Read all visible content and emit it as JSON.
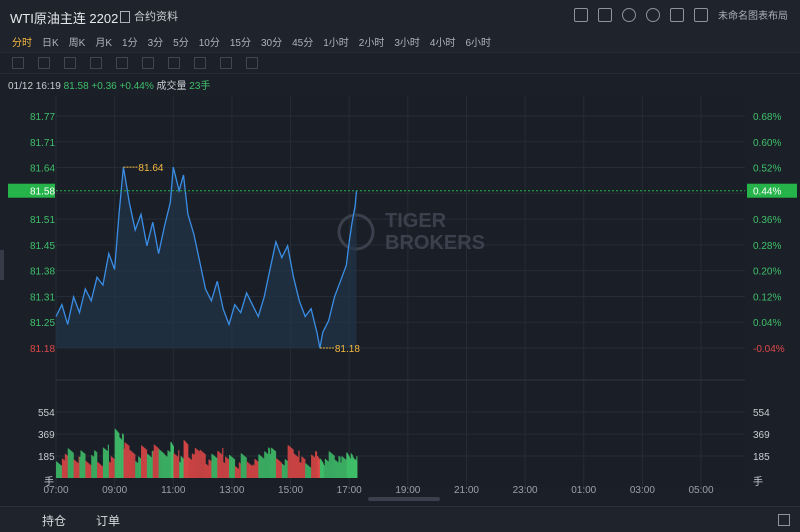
{
  "header": {
    "title": "WTI原油主连 2202",
    "contract_label": "合约资料",
    "layout_label": "未命名图表布局"
  },
  "periods": [
    {
      "label": "分时",
      "active": true
    },
    {
      "label": "日K"
    },
    {
      "label": "周K"
    },
    {
      "label": "月K"
    },
    {
      "label": "1分"
    },
    {
      "label": "3分"
    },
    {
      "label": "5分"
    },
    {
      "label": "10分"
    },
    {
      "label": "15分"
    },
    {
      "label": "30分"
    },
    {
      "label": "45分"
    },
    {
      "label": "1小时"
    },
    {
      "label": "2小时"
    },
    {
      "label": "3小时"
    },
    {
      "label": "4小时"
    },
    {
      "label": "6小时"
    }
  ],
  "info": {
    "time": "01/12 16:19",
    "price": "81.58",
    "change": "+0.36",
    "change_pct": "+0.44%",
    "volume_label": "成交量",
    "volume": "23手"
  },
  "watermark": {
    "line1": "TIGER",
    "line2": "BROKERS"
  },
  "bottom_tabs": [
    "持仓",
    "订单"
  ],
  "colors": {
    "line": "#3a8ee6",
    "up": "#3fbf6a",
    "down": "#e04848",
    "accent": "#f5b942",
    "current": "#25b34a"
  },
  "chart_data": {
    "type": "line",
    "price_ticks": [
      "81.77",
      "81.71",
      "81.64",
      "81.58",
      "81.51",
      "81.45",
      "81.38",
      "81.31",
      "81.25",
      "81.18"
    ],
    "pct_ticks": [
      "0.68%",
      "0.60%",
      "0.52%",
      "0.44%",
      "0.36%",
      "0.28%",
      "0.20%",
      "0.12%",
      "0.04%",
      "-0.04%"
    ],
    "ylim": [
      81.18,
      81.77
    ],
    "time_ticks": [
      "07:00",
      "09:00",
      "11:00",
      "13:00",
      "15:00",
      "17:00",
      "19:00",
      "21:00",
      "23:00",
      "01:00",
      "03:00",
      "05:00"
    ],
    "xlim_hours": [
      7,
      30.5
    ],
    "current_price": "81.58",
    "current_pct": "0.44%",
    "max_label": "81.64",
    "min_label": "81.18",
    "volume_ticks": [
      "554",
      "369",
      "185"
    ],
    "volume_unit": "手",
    "volume_max": 740,
    "series": [
      {
        "values": [
          [
            7.0,
            81.26
          ],
          [
            7.2,
            81.29
          ],
          [
            7.4,
            81.24
          ],
          [
            7.6,
            81.31
          ],
          [
            7.8,
            81.27
          ],
          [
            8.0,
            81.33
          ],
          [
            8.2,
            81.3
          ],
          [
            8.4,
            81.36
          ],
          [
            8.6,
            81.34
          ],
          [
            8.8,
            81.42
          ],
          [
            9.0,
            81.38
          ],
          [
            9.15,
            81.52
          ],
          [
            9.3,
            81.64
          ],
          [
            9.5,
            81.55
          ],
          [
            9.7,
            81.48
          ],
          [
            9.9,
            81.52
          ],
          [
            10.1,
            81.44
          ],
          [
            10.3,
            81.5
          ],
          [
            10.5,
            81.42
          ],
          [
            10.7,
            81.49
          ],
          [
            10.9,
            81.55
          ],
          [
            11.0,
            81.64
          ],
          [
            11.2,
            81.58
          ],
          [
            11.35,
            81.62
          ],
          [
            11.5,
            81.52
          ],
          [
            11.7,
            81.47
          ],
          [
            11.9,
            81.4
          ],
          [
            12.1,
            81.33
          ],
          [
            12.3,
            81.3
          ],
          [
            12.5,
            81.35
          ],
          [
            12.7,
            81.28
          ],
          [
            12.9,
            81.24
          ],
          [
            13.1,
            81.29
          ],
          [
            13.3,
            81.27
          ],
          [
            13.5,
            81.32
          ],
          [
            13.7,
            81.29
          ],
          [
            13.9,
            81.26
          ],
          [
            14.1,
            81.31
          ],
          [
            14.3,
            81.38
          ],
          [
            14.5,
            81.45
          ],
          [
            14.7,
            81.41
          ],
          [
            14.9,
            81.44
          ],
          [
            15.1,
            81.36
          ],
          [
            15.3,
            81.3
          ],
          [
            15.5,
            81.26
          ],
          [
            15.7,
            81.28
          ],
          [
            15.9,
            81.22
          ],
          [
            16.0,
            81.18
          ],
          [
            16.1,
            81.22
          ],
          [
            16.3,
            81.25
          ],
          [
            16.5,
            81.31
          ],
          [
            16.7,
            81.35
          ],
          [
            16.9,
            81.39
          ],
          [
            17.0,
            81.45
          ],
          [
            17.1,
            81.5
          ],
          [
            17.2,
            81.54
          ],
          [
            17.25,
            81.58
          ]
        ]
      }
    ]
  }
}
